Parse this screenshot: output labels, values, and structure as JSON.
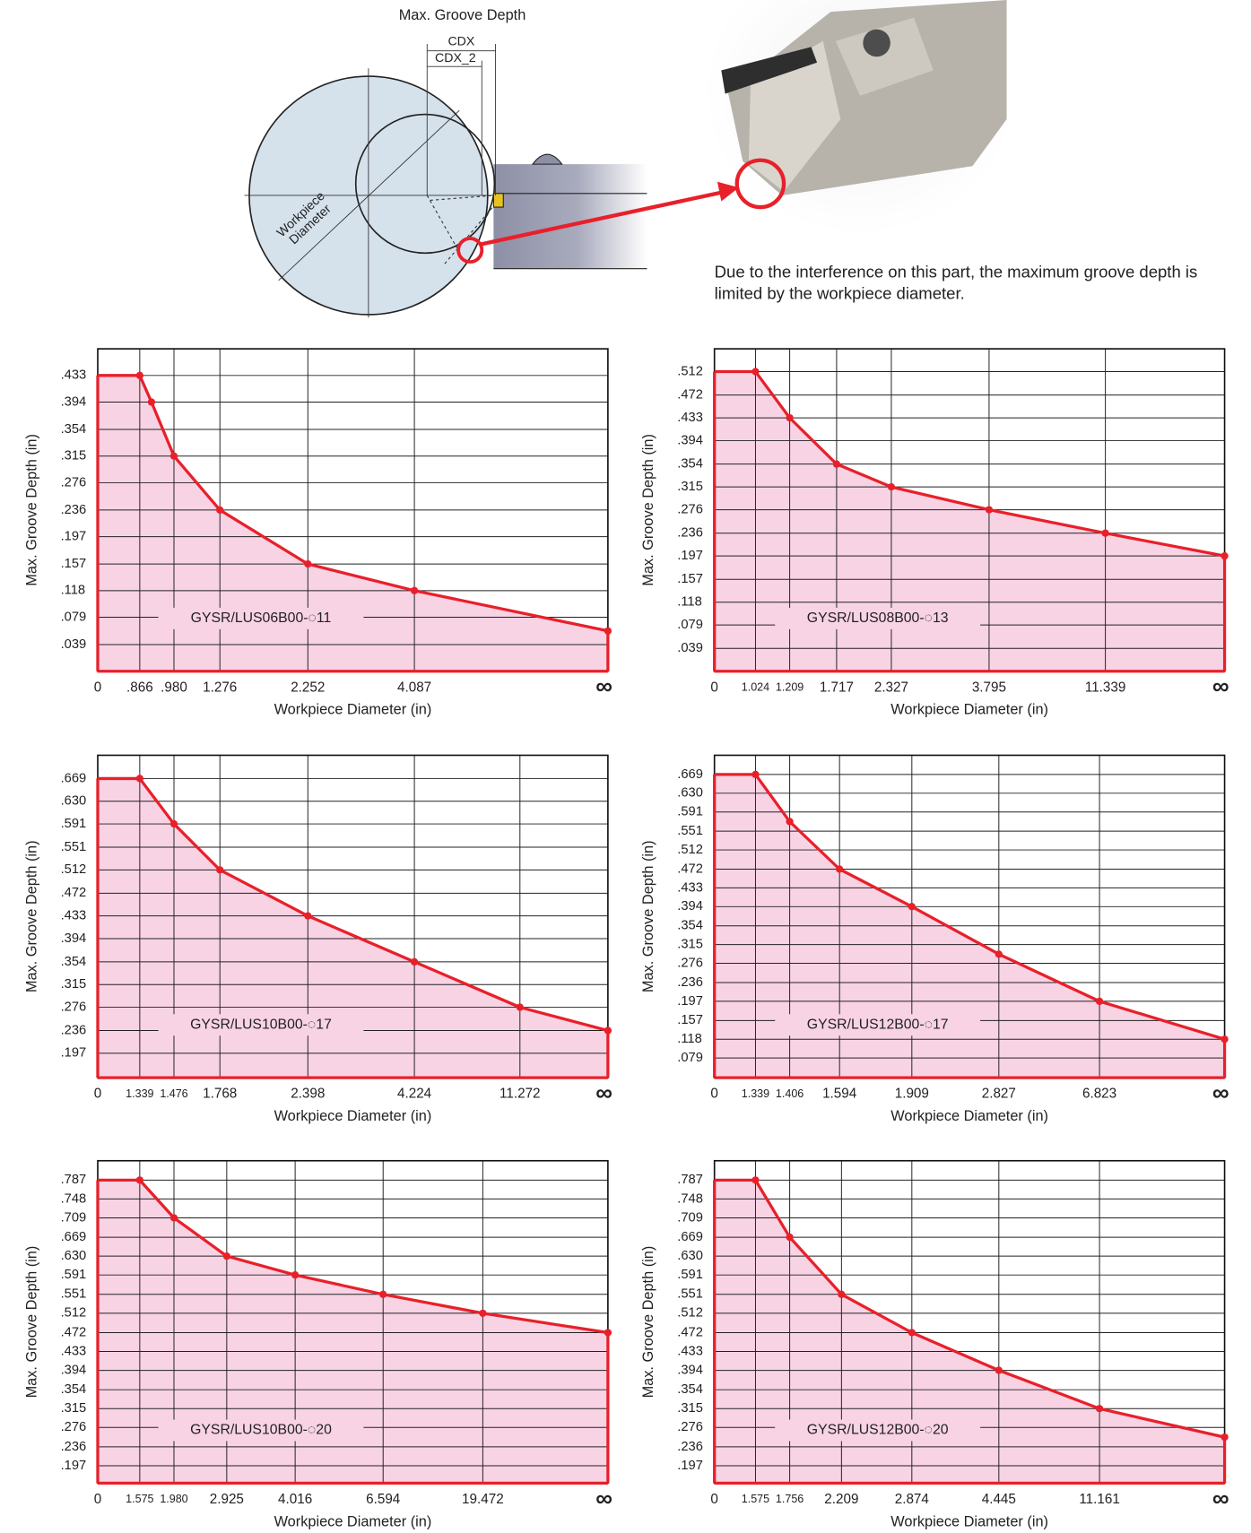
{
  "diagram": {
    "title": "Max. Groove Depth",
    "dimension_labels": [
      "CDX",
      "CDX_2"
    ],
    "workpiece_label": [
      "Workpiece",
      "Diameter"
    ],
    "note": "Due to the interference on this part, the maximum groove depth is limited by the workpiece diameter."
  },
  "chart_data": [
    {
      "type": "area",
      "annotation": "GYSR/LUS06B00-◌11",
      "x_label": "Workpiece Diameter (in)",
      "y_label": "Max. Groove Depth (in)",
      "color": "#e8202a",
      "area_color": "#f8d3e4",
      "grid": true,
      "categories": [
        "0",
        ".866",
        null,
        ".980",
        "1.276",
        "2.252",
        "4.087",
        "∞"
      ],
      "values": [
        0.433,
        0.433,
        0.394,
        0.315,
        0.236,
        0.157,
        0.118,
        0.059
      ],
      "ylim": [
        0,
        0.472
      ],
      "yticks": [
        {
          "value": 0.039,
          "label": ".039"
        },
        {
          "value": 0.079,
          "label": ".079"
        },
        {
          "value": 0.118,
          "label": ".118"
        },
        {
          "value": 0.157,
          "label": ".157"
        },
        {
          "value": 0.197,
          "label": ".197"
        },
        {
          "value": 0.236,
          "label": ".236"
        },
        {
          "value": 0.276,
          "label": ".276"
        },
        {
          "value": 0.315,
          "label": ".315"
        },
        {
          "value": 0.354,
          "label": ".354"
        },
        {
          "value": 0.394,
          "label": ".394"
        },
        {
          "value": 0.433,
          "label": ".433"
        }
      ]
    },
    {
      "type": "area",
      "annotation": "GYSR/LUS08B00-◌13",
      "x_label": "Workpiece Diameter (in)",
      "y_label": "Max. Groove Depth (in)",
      "color": "#e8202a",
      "area_color": "#f8d3e4",
      "grid": true,
      "categories": [
        "0",
        "1.024",
        "1.209",
        "1.717",
        "2.327",
        "3.795",
        "11.339",
        "∞"
      ],
      "values": [
        0.512,
        0.512,
        0.433,
        0.354,
        0.315,
        0.276,
        0.236,
        0.197
      ],
      "ylim": [
        0,
        0.551
      ],
      "yticks": [
        {
          "value": 0.039,
          "label": ".039"
        },
        {
          "value": 0.079,
          "label": ".079"
        },
        {
          "value": 0.118,
          "label": ".118"
        },
        {
          "value": 0.157,
          "label": ".157"
        },
        {
          "value": 0.197,
          "label": ".197"
        },
        {
          "value": 0.236,
          "label": ".236"
        },
        {
          "value": 0.276,
          "label": ".276"
        },
        {
          "value": 0.315,
          "label": ".315"
        },
        {
          "value": 0.354,
          "label": ".354"
        },
        {
          "value": 0.394,
          "label": ".394"
        },
        {
          "value": 0.433,
          "label": ".433"
        },
        {
          "value": 0.472,
          "label": ".472"
        },
        {
          "value": 0.512,
          "label": ".512"
        }
      ]
    },
    {
      "type": "area",
      "annotation": "GYSR/LUS10B00-◌17",
      "x_label": "Workpiece Diameter (in)",
      "y_label": "Max. Groove Depth (in)",
      "color": "#e8202a",
      "area_color": "#f8d3e4",
      "grid": true,
      "categories": [
        "0",
        "1.339",
        "1.476",
        "1.768",
        "2.398",
        "4.224",
        "11.272",
        "∞"
      ],
      "values": [
        0.669,
        0.669,
        0.591,
        0.512,
        0.433,
        0.354,
        0.276,
        0.236
      ],
      "ylim": [
        0.155,
        0.709
      ],
      "yticks": [
        {
          "value": 0.197,
          "label": ".197"
        },
        {
          "value": 0.236,
          "label": ".236"
        },
        {
          "value": 0.276,
          "label": ".276"
        },
        {
          "value": 0.315,
          "label": ".315"
        },
        {
          "value": 0.354,
          "label": ".354"
        },
        {
          "value": 0.394,
          "label": ".394"
        },
        {
          "value": 0.433,
          "label": ".433"
        },
        {
          "value": 0.472,
          "label": ".472"
        },
        {
          "value": 0.512,
          "label": ".512"
        },
        {
          "value": 0.551,
          "label": ".551"
        },
        {
          "value": 0.591,
          "label": ".591"
        },
        {
          "value": 0.63,
          "label": ".630"
        },
        {
          "value": 0.669,
          "label": ".669"
        }
      ]
    },
    {
      "type": "area",
      "annotation": "GYSR/LUS12B00-◌17",
      "x_label": "Workpiece Diameter (in)",
      "y_label": "Max. Groove Depth (in)",
      "color": "#e8202a",
      "area_color": "#f8d3e4",
      "grid": true,
      "categories": [
        "0",
        "1.339",
        "1.406",
        "1.594",
        "1.909",
        "2.827",
        "6.823",
        "∞"
      ],
      "values": [
        0.669,
        0.669,
        0.571,
        0.472,
        0.394,
        0.295,
        0.197,
        0.118
      ],
      "ylim": [
        0.038,
        0.709
      ],
      "yticks": [
        {
          "value": 0.079,
          "label": ".079"
        },
        {
          "value": 0.118,
          "label": ".118"
        },
        {
          "value": 0.157,
          "label": ".157"
        },
        {
          "value": 0.197,
          "label": ".197"
        },
        {
          "value": 0.236,
          "label": ".236"
        },
        {
          "value": 0.276,
          "label": ".276"
        },
        {
          "value": 0.315,
          "label": ".315"
        },
        {
          "value": 0.354,
          "label": ".354"
        },
        {
          "value": 0.394,
          "label": ".394"
        },
        {
          "value": 0.433,
          "label": ".433"
        },
        {
          "value": 0.472,
          "label": ".472"
        },
        {
          "value": 0.512,
          "label": ".512"
        },
        {
          "value": 0.551,
          "label": ".551"
        },
        {
          "value": 0.591,
          "label": ".591"
        },
        {
          "value": 0.63,
          "label": ".630"
        },
        {
          "value": 0.669,
          "label": ".669"
        }
      ]
    },
    {
      "type": "area",
      "annotation": "GYSR/LUS10B00-◌20",
      "x_label": "Workpiece Diameter (in)",
      "y_label": "Max. Groove Depth (in)",
      "color": "#e8202a",
      "area_color": "#f8d3e4",
      "grid": true,
      "categories": [
        "0",
        "1.575",
        "1.980",
        "2.925",
        "4.016",
        "6.594",
        "19.472",
        "∞"
      ],
      "values": [
        0.787,
        0.787,
        0.709,
        0.63,
        0.591,
        0.551,
        0.512,
        0.472
      ],
      "ylim": [
        0.161,
        0.827
      ],
      "yticks": [
        {
          "value": 0.197,
          "label": ".197"
        },
        {
          "value": 0.236,
          "label": ".236"
        },
        {
          "value": 0.276,
          "label": ".276"
        },
        {
          "value": 0.315,
          "label": ".315"
        },
        {
          "value": 0.354,
          "label": ".354"
        },
        {
          "value": 0.394,
          "label": ".394"
        },
        {
          "value": 0.433,
          "label": ".433"
        },
        {
          "value": 0.472,
          "label": ".472"
        },
        {
          "value": 0.512,
          "label": ".512"
        },
        {
          "value": 0.551,
          "label": ".551"
        },
        {
          "value": 0.591,
          "label": ".591"
        },
        {
          "value": 0.63,
          "label": ".630"
        },
        {
          "value": 0.669,
          "label": ".669"
        },
        {
          "value": 0.709,
          "label": ".709"
        },
        {
          "value": 0.748,
          "label": ".748"
        },
        {
          "value": 0.787,
          "label": ".787"
        }
      ]
    },
    {
      "type": "area",
      "annotation": "GYSR/LUS12B00-◌20",
      "x_label": "Workpiece Diameter (in)",
      "y_label": "Max. Groove Depth (in)",
      "color": "#e8202a",
      "area_color": "#f8d3e4",
      "grid": true,
      "categories": [
        "0",
        "1.575",
        "1.756",
        "2.209",
        "2.874",
        "4.445",
        "11.161",
        "∞"
      ],
      "values": [
        0.787,
        0.787,
        0.669,
        0.551,
        0.472,
        0.394,
        0.315,
        0.256
      ],
      "ylim": [
        0.161,
        0.827
      ],
      "yticks": [
        {
          "value": 0.197,
          "label": ".197"
        },
        {
          "value": 0.236,
          "label": ".236"
        },
        {
          "value": 0.276,
          "label": ".276"
        },
        {
          "value": 0.315,
          "label": ".315"
        },
        {
          "value": 0.354,
          "label": ".354"
        },
        {
          "value": 0.394,
          "label": ".394"
        },
        {
          "value": 0.433,
          "label": ".433"
        },
        {
          "value": 0.472,
          "label": ".472"
        },
        {
          "value": 0.512,
          "label": ".512"
        },
        {
          "value": 0.551,
          "label": ".551"
        },
        {
          "value": 0.591,
          "label": ".591"
        },
        {
          "value": 0.63,
          "label": ".630"
        },
        {
          "value": 0.669,
          "label": ".669"
        },
        {
          "value": 0.709,
          "label": ".709"
        },
        {
          "value": 0.748,
          "label": ".748"
        },
        {
          "value": 0.787,
          "label": ".787"
        }
      ]
    }
  ]
}
